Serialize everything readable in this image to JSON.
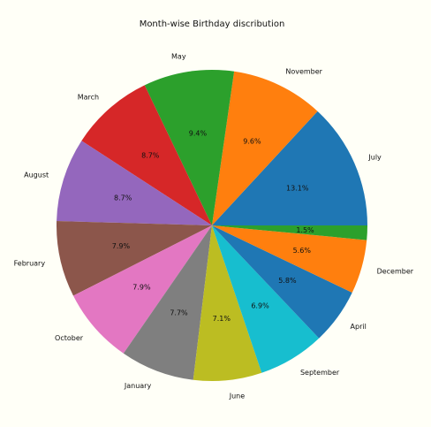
{
  "chart_data": {
    "type": "pie",
    "title": "Month-wise Birthday discribution",
    "background_color": "#fffff7",
    "start_angle_deg": 0,
    "direction": "counterclockwise",
    "slices": [
      {
        "label": "July",
        "pct_label": "13.1%",
        "value": 13.1,
        "color": "#1f77b4"
      },
      {
        "label": "November",
        "pct_label": "9.6%",
        "value": 9.6,
        "color": "#ff7f0e"
      },
      {
        "label": "May",
        "pct_label": "9.4%",
        "value": 9.4,
        "color": "#2ca02c"
      },
      {
        "label": "March",
        "pct_label": "8.7%",
        "value": 8.7,
        "color": "#d62728"
      },
      {
        "label": "August",
        "pct_label": "8.7%",
        "value": 8.7,
        "color": "#9467bd"
      },
      {
        "label": "February",
        "pct_label": "7.9%",
        "value": 7.9,
        "color": "#8c564b"
      },
      {
        "label": "October",
        "pct_label": "7.9%",
        "value": 7.9,
        "color": "#e377c2"
      },
      {
        "label": "January",
        "pct_label": "7.7%",
        "value": 7.7,
        "color": "#7f7f7f"
      },
      {
        "label": "June",
        "pct_label": "7.1%",
        "value": 7.1,
        "color": "#bcbd22"
      },
      {
        "label": "September",
        "pct_label": "6.9%",
        "value": 6.9,
        "color": "#17becf"
      },
      {
        "label": "April",
        "pct_label": "5.8%",
        "value": 5.8,
        "color": "#1f77b4"
      },
      {
        "label": "December",
        "pct_label": "5.6%",
        "value": 5.6,
        "color": "#ff7f0e"
      },
      {
        "label": "",
        "pct_label": "1.5%",
        "value": 1.5,
        "color": "#2ca02c"
      }
    ]
  }
}
